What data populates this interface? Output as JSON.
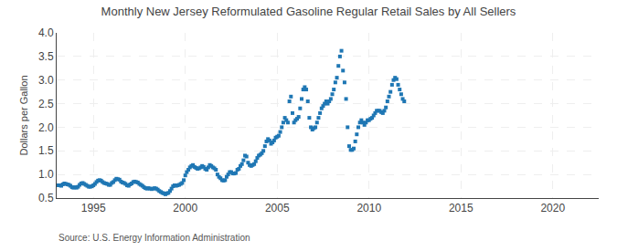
{
  "chart_data": {
    "type": "scatter",
    "title": "Monthly New Jersey Reformulated Gasoline Regular Retail Sales by All Sellers",
    "y_label": "Dollars per Gallon",
    "annotations": [
      "Source: U.S. Energy Information Administration"
    ],
    "marker": "square",
    "grid": true,
    "xlim": [
      1993.0,
      2022.5
    ],
    "xticks": [
      1995,
      2000,
      2005,
      2010,
      2015,
      2020
    ],
    "ylim": [
      0.5,
      4.0
    ],
    "yticks": [
      0.5,
      {
        "value": 1.0,
        "label": "1.0"
      },
      1.5,
      {
        "value": 2.0,
        "label": "2.0"
      },
      2.5,
      {
        "value": 3.0,
        "label": "3.0"
      },
      3.5,
      {
        "value": 4.0,
        "label": "4.0"
      }
    ],
    "x": [
      1993.0,
      1993.083,
      1993.167,
      1993.25,
      1993.333,
      1993.417,
      1993.5,
      1993.583,
      1993.667,
      1993.75,
      1993.833,
      1993.917,
      1994.0,
      1994.083,
      1994.167,
      1994.25,
      1994.333,
      1994.417,
      1994.5,
      1994.583,
      1994.667,
      1994.75,
      1994.833,
      1994.917,
      1995.0,
      1995.083,
      1995.167,
      1995.25,
      1995.333,
      1995.417,
      1995.5,
      1995.583,
      1995.667,
      1995.75,
      1995.833,
      1995.917,
      1996.0,
      1996.083,
      1996.167,
      1996.25,
      1996.333,
      1996.417,
      1996.5,
      1996.583,
      1996.667,
      1996.75,
      1996.833,
      1996.917,
      1997.0,
      1997.083,
      1997.167,
      1997.25,
      1997.333,
      1997.417,
      1997.5,
      1997.583,
      1997.667,
      1997.75,
      1997.833,
      1997.917,
      1998.0,
      1998.083,
      1998.167,
      1998.25,
      1998.333,
      1998.417,
      1998.5,
      1998.583,
      1998.667,
      1998.75,
      1998.833,
      1998.917,
      1999.0,
      1999.083,
      1999.167,
      1999.25,
      1999.333,
      1999.417,
      1999.5,
      1999.583,
      1999.667,
      1999.75,
      1999.833,
      1999.917,
      2000.0,
      2000.083,
      2000.167,
      2000.25,
      2000.333,
      2000.417,
      2000.5,
      2000.583,
      2000.667,
      2000.75,
      2000.833,
      2000.917,
      2001.0,
      2001.083,
      2001.167,
      2001.25,
      2001.333,
      2001.417,
      2001.5,
      2001.583,
      2001.667,
      2001.75,
      2001.833,
      2001.917,
      2002.0,
      2002.083,
      2002.167,
      2002.25,
      2002.333,
      2002.417,
      2002.5,
      2002.583,
      2002.667,
      2002.75,
      2002.833,
      2002.917,
      2003.0,
      2003.083,
      2003.167,
      2003.25,
      2003.333,
      2003.417,
      2003.5,
      2003.583,
      2003.667,
      2003.75,
      2003.833,
      2003.917,
      2004.0,
      2004.083,
      2004.167,
      2004.25,
      2004.333,
      2004.417,
      2004.5,
      2004.583,
      2004.667,
      2004.75,
      2004.833,
      2004.917,
      2005.0,
      2005.083,
      2005.167,
      2005.25,
      2005.333,
      2005.417,
      2005.5,
      2005.583,
      2005.667,
      2005.75,
      2005.833,
      2005.917,
      2006.0,
      2006.083,
      2006.167,
      2006.25,
      2006.333,
      2006.417,
      2006.5,
      2006.583,
      2006.667,
      2006.75,
      2006.833,
      2006.917,
      2007.0,
      2007.083,
      2007.167,
      2007.25,
      2007.333,
      2007.417,
      2007.5,
      2007.583,
      2007.667,
      2007.75,
      2007.833,
      2007.917,
      2008.0,
      2008.083,
      2008.167,
      2008.25,
      2008.333,
      2008.417,
      2008.5,
      2008.583,
      2008.667,
      2008.75,
      2008.833,
      2008.917,
      2009.0,
      2009.083,
      2009.167,
      2009.25,
      2009.333,
      2009.417,
      2009.5,
      2009.583,
      2009.667,
      2009.75,
      2009.833,
      2009.917,
      2010.0,
      2010.083,
      2010.167,
      2010.25,
      2010.333,
      2010.417,
      2010.5,
      2010.583,
      2010.667,
      2010.75,
      2010.833,
      2010.917,
      2011.0,
      2011.083,
      2011.167,
      2011.25,
      2011.333,
      2011.417,
      2011.5,
      2011.583,
      2011.667,
      2011.75,
      2011.833,
      2011.917
    ],
    "values": [
      0.77,
      0.77,
      0.77,
      0.76,
      0.79,
      0.81,
      0.8,
      0.79,
      0.78,
      0.76,
      0.73,
      0.72,
      0.73,
      0.72,
      0.74,
      0.78,
      0.81,
      0.82,
      0.8,
      0.78,
      0.76,
      0.74,
      0.74,
      0.75,
      0.77,
      0.8,
      0.84,
      0.87,
      0.88,
      0.87,
      0.84,
      0.82,
      0.81,
      0.8,
      0.78,
      0.78,
      0.82,
      0.84,
      0.88,
      0.91,
      0.9,
      0.89,
      0.85,
      0.83,
      0.82,
      0.8,
      0.77,
      0.76,
      0.79,
      0.81,
      0.84,
      0.85,
      0.84,
      0.83,
      0.8,
      0.78,
      0.76,
      0.73,
      0.71,
      0.7,
      0.71,
      0.7,
      0.69,
      0.7,
      0.71,
      0.7,
      0.68,
      0.65,
      0.63,
      0.61,
      0.6,
      0.58,
      0.6,
      0.61,
      0.65,
      0.7,
      0.75,
      0.77,
      0.76,
      0.77,
      0.78,
      0.8,
      0.82,
      0.88,
      0.98,
      1.05,
      1.1,
      1.15,
      1.18,
      1.2,
      1.16,
      1.14,
      1.12,
      1.13,
      1.15,
      1.18,
      1.16,
      1.12,
      1.1,
      1.15,
      1.2,
      1.18,
      1.15,
      1.13,
      1.1,
      1.0,
      0.95,
      0.92,
      0.88,
      0.87,
      0.88,
      0.95,
      1.0,
      1.05,
      1.05,
      1.02,
      1.02,
      1.03,
      1.1,
      1.12,
      1.18,
      1.22,
      1.3,
      1.4,
      1.38,
      1.25,
      1.2,
      1.18,
      1.2,
      1.22,
      1.28,
      1.35,
      1.4,
      1.42,
      1.45,
      1.5,
      1.6,
      1.7,
      1.75,
      1.72,
      1.65,
      1.68,
      1.72,
      1.78,
      1.8,
      1.82,
      1.9,
      2.0,
      2.1,
      2.2,
      2.15,
      2.1,
      2.55,
      2.65,
      2.3,
      2.1,
      2.15,
      2.18,
      2.22,
      2.4,
      2.6,
      2.8,
      2.85,
      2.8,
      2.55,
      2.2,
      2.0,
      1.95,
      1.98,
      2.0,
      2.1,
      2.2,
      2.3,
      2.4,
      2.45,
      2.5,
      2.55,
      2.5,
      2.55,
      2.6,
      2.7,
      2.8,
      2.95,
      3.05,
      3.3,
      3.5,
      3.62,
      3.2,
      2.95,
      2.6,
      2.0,
      1.6,
      1.52,
      1.52,
      1.55,
      1.7,
      1.85,
      2.0,
      2.1,
      2.15,
      2.1,
      2.05,
      2.1,
      2.15,
      2.15,
      2.18,
      2.2,
      2.25,
      2.3,
      2.35,
      2.35,
      2.35,
      2.32,
      2.3,
      2.35,
      2.42,
      2.55,
      2.65,
      2.75,
      2.9,
      3.0,
      3.05,
      3.02,
      2.9,
      2.8,
      2.7,
      2.6,
      2.55
    ]
  }
}
